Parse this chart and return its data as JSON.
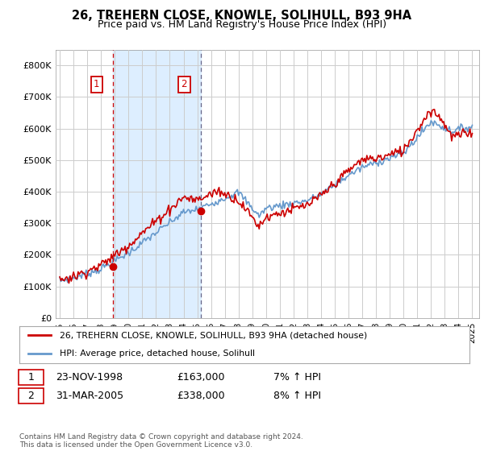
{
  "title": "26, TREHERN CLOSE, KNOWLE, SOLIHULL, B93 9HA",
  "subtitle": "Price paid vs. HM Land Registry's House Price Index (HPI)",
  "ylim": [
    0,
    850000
  ],
  "yticks": [
    0,
    100000,
    200000,
    300000,
    400000,
    500000,
    600000,
    700000,
    800000
  ],
  "ytick_labels": [
    "£0",
    "£100K",
    "£200K",
    "£300K",
    "£400K",
    "£500K",
    "£600K",
    "£700K",
    "£800K"
  ],
  "background_color": "#ffffff",
  "plot_bg_color": "#ffffff",
  "grid_color": "#cccccc",
  "shade_color": "#ddeeff",
  "line1_color": "#cc0000",
  "line2_color": "#6699cc",
  "marker_color": "#cc0000",
  "vline1_color": "#cc0000",
  "vline2_color": "#666688",
  "sale1_year": 1998.88,
  "sale1_price": 163000,
  "sale2_year": 2005.25,
  "sale2_price": 338000,
  "legend_line1": "26, TREHERN CLOSE, KNOWLE, SOLIHULL, B93 9HA (detached house)",
  "legend_line2": "HPI: Average price, detached house, Solihull",
  "table_row1": [
    "1",
    "23-NOV-1998",
    "£163,000",
    "7% ↑ HPI"
  ],
  "table_row2": [
    "2",
    "31-MAR-2005",
    "£338,000",
    "8% ↑ HPI"
  ],
  "footer": "Contains HM Land Registry data © Crown copyright and database right 2024.\nThis data is licensed under the Open Government Licence v3.0."
}
